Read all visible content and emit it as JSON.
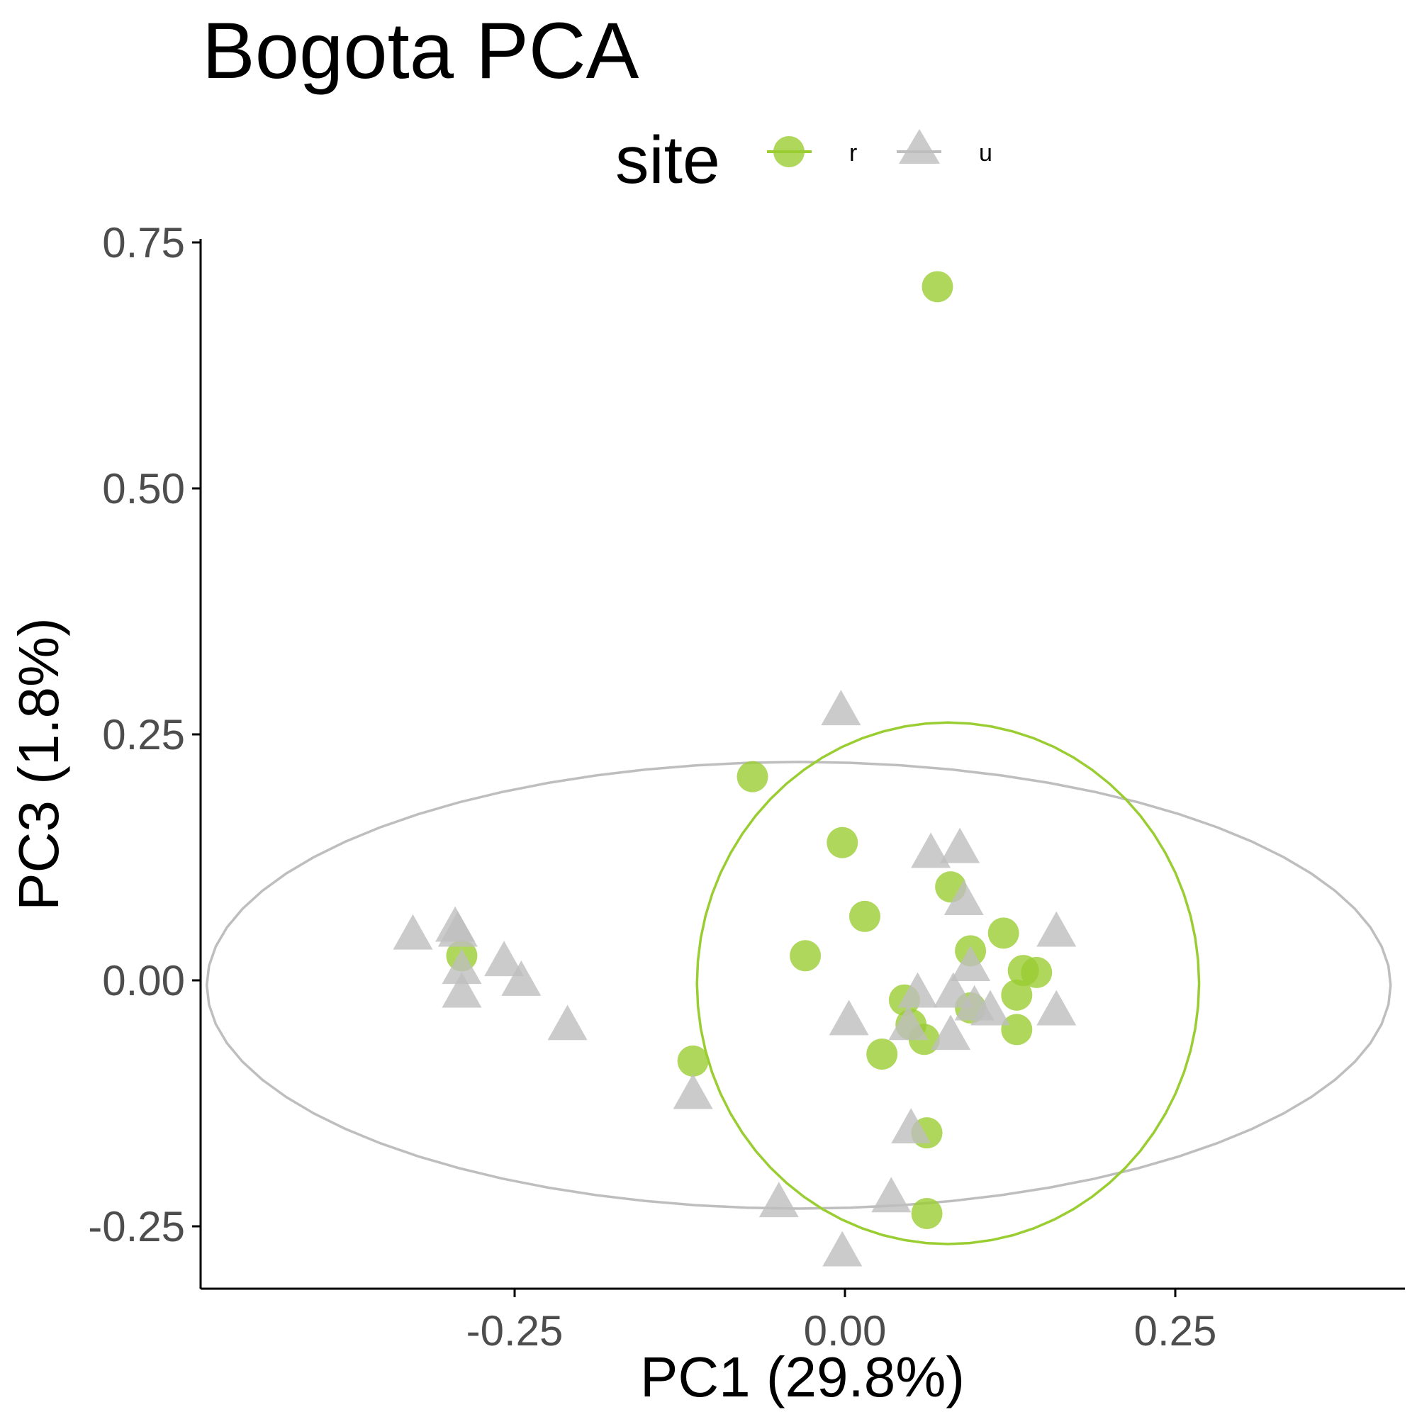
{
  "chart_data": {
    "type": "scatter",
    "title": "Bogota PCA",
    "xlabel": "PC1 (29.8%)",
    "ylabel": "PC3 (1.8%)",
    "xlim": [
      -0.49,
      0.43
    ],
    "ylim": [
      -0.31,
      0.75
    ],
    "x_ticks": [
      "-0.25",
      "0.00",
      "0.25"
    ],
    "y_ticks": [
      "0.75",
      "0.50",
      "0.25",
      "0.00",
      "-0.25"
    ],
    "x_tick_values": [
      -0.25,
      0.0,
      0.25
    ],
    "y_tick_values": [
      0.75,
      0.5,
      0.25,
      0.0,
      -0.25
    ],
    "grid": false,
    "legend": {
      "title": "site",
      "position": "top"
    },
    "series": [
      {
        "name": "r",
        "marker": "circle",
        "color": "#9ACD32",
        "points": [
          [
            0.07,
            0.705
          ],
          [
            -0.07,
            0.207
          ],
          [
            -0.002,
            0.14
          ],
          [
            0.015,
            0.065
          ],
          [
            0.08,
            0.095
          ],
          [
            -0.03,
            0.025
          ],
          [
            0.095,
            0.03
          ],
          [
            0.12,
            0.048
          ],
          [
            0.135,
            0.01
          ],
          [
            0.145,
            0.008
          ],
          [
            0.13,
            -0.015
          ],
          [
            0.045,
            -0.02
          ],
          [
            0.095,
            -0.028
          ],
          [
            0.05,
            -0.045
          ],
          [
            0.06,
            -0.06
          ],
          [
            0.13,
            -0.05
          ],
          [
            0.028,
            -0.075
          ],
          [
            -0.115,
            -0.082
          ],
          [
            0.062,
            -0.155
          ],
          [
            0.062,
            -0.237
          ],
          [
            -0.29,
            0.025
          ]
        ]
      },
      {
        "name": "u",
        "marker": "triangle",
        "color": "#BEBEBE",
        "points": [
          [
            -0.003,
            0.275
          ],
          [
            0.065,
            0.13
          ],
          [
            0.087,
            0.135
          ],
          [
            0.09,
            0.082
          ],
          [
            0.16,
            0.05
          ],
          [
            -0.327,
            0.047
          ],
          [
            -0.295,
            0.055
          ],
          [
            -0.293,
            0.05
          ],
          [
            -0.258,
            0.02
          ],
          [
            -0.29,
            0.012
          ],
          [
            -0.245,
            0.0
          ],
          [
            -0.29,
            -0.012
          ],
          [
            -0.21,
            -0.045
          ],
          [
            0.095,
            0.015
          ],
          [
            0.055,
            -0.012
          ],
          [
            0.082,
            -0.012
          ],
          [
            0.098,
            -0.025
          ],
          [
            0.11,
            -0.03
          ],
          [
            0.16,
            -0.03
          ],
          [
            0.003,
            -0.04
          ],
          [
            0.08,
            -0.055
          ],
          [
            0.048,
            -0.045
          ],
          [
            -0.115,
            -0.115
          ],
          [
            0.05,
            -0.15
          ],
          [
            -0.05,
            -0.225
          ],
          [
            0.035,
            -0.22
          ],
          [
            -0.002,
            -0.275
          ]
        ]
      }
    ],
    "ellipses": [
      {
        "series": "u",
        "color": "#BEBEBE",
        "center": [
          -0.035,
          -0.005
        ],
        "radius_x": 0.448,
        "radius_y": 0.227,
        "rotation_deg": 0
      },
      {
        "series": "r",
        "color": "#9ACD32",
        "center": [
          0.078,
          -0.003
        ],
        "radius_x": 0.19,
        "radius_y": 0.265,
        "rotation_deg": 0
      }
    ]
  }
}
